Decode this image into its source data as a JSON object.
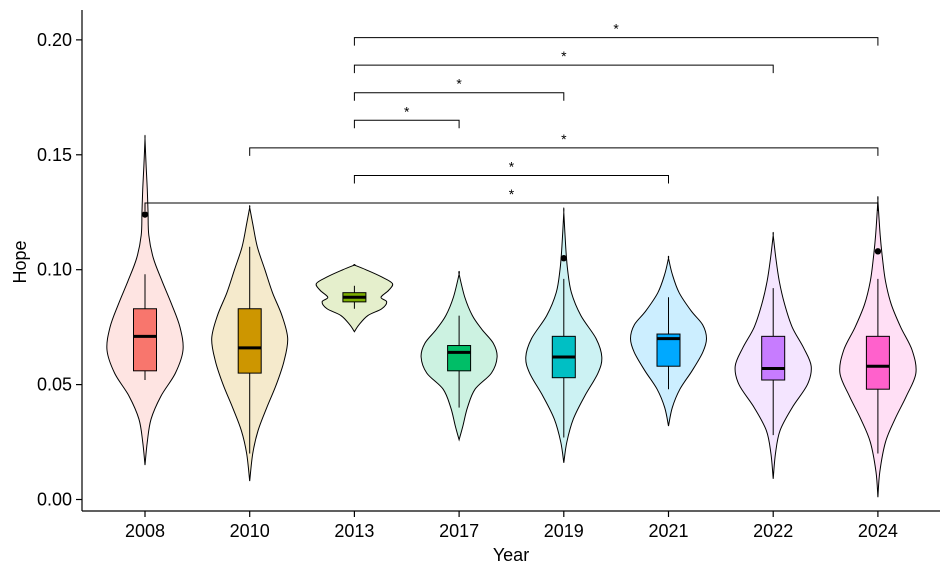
{
  "chart_data": {
    "type": "violin",
    "xlabel": "Year",
    "ylabel": "Hope",
    "ylim": [
      -0.005,
      0.213
    ],
    "yticks": [
      0.0,
      0.05,
      0.1,
      0.15,
      0.2
    ],
    "ytick_labels": [
      "0.00",
      "0.05",
      "0.10",
      "0.15",
      "0.20"
    ],
    "categories": [
      "2008",
      "2010",
      "2013",
      "2017",
      "2019",
      "2021",
      "2022",
      "2024"
    ],
    "groups": [
      {
        "category": "2008",
        "color": "#F8766D",
        "q1": 0.056,
        "median": 0.071,
        "q3": 0.083,
        "whisker_low": 0.052,
        "whisker_high": 0.098,
        "violin_min": 0.015,
        "violin_max": 0.157,
        "outliers": [
          0.124
        ],
        "density": [
          [
            0.015,
            0.0
          ],
          [
            0.025,
            0.06
          ],
          [
            0.035,
            0.16
          ],
          [
            0.045,
            0.42
          ],
          [
            0.055,
            0.8
          ],
          [
            0.065,
            1.0
          ],
          [
            0.075,
            0.92
          ],
          [
            0.085,
            0.7
          ],
          [
            0.095,
            0.45
          ],
          [
            0.105,
            0.22
          ],
          [
            0.115,
            0.1
          ],
          [
            0.125,
            0.08
          ],
          [
            0.135,
            0.06
          ],
          [
            0.145,
            0.03
          ],
          [
            0.157,
            0.0
          ]
        ]
      },
      {
        "category": "2010",
        "color": "#CD9600",
        "q1": 0.055,
        "median": 0.066,
        "q3": 0.083,
        "whisker_low": 0.02,
        "whisker_high": 0.11,
        "violin_min": 0.008,
        "violin_max": 0.127,
        "outliers": [],
        "density": [
          [
            0.008,
            0.0
          ],
          [
            0.02,
            0.08
          ],
          [
            0.03,
            0.22
          ],
          [
            0.04,
            0.45
          ],
          [
            0.05,
            0.7
          ],
          [
            0.06,
            0.9
          ],
          [
            0.07,
            1.0
          ],
          [
            0.08,
            0.85
          ],
          [
            0.09,
            0.6
          ],
          [
            0.1,
            0.4
          ],
          [
            0.11,
            0.2
          ],
          [
            0.12,
            0.08
          ],
          [
            0.127,
            0.0
          ]
        ]
      },
      {
        "category": "2013",
        "color": "#7CAE00",
        "q1": 0.086,
        "median": 0.088,
        "q3": 0.09,
        "whisker_low": 0.083,
        "whisker_high": 0.093,
        "violin_min": 0.073,
        "violin_max": 0.102,
        "outliers": [],
        "density": [
          [
            0.073,
            0.0
          ],
          [
            0.076,
            0.12
          ],
          [
            0.08,
            0.35
          ],
          [
            0.083,
            0.72
          ],
          [
            0.086,
            0.85
          ],
          [
            0.088,
            0.7
          ],
          [
            0.091,
            0.9
          ],
          [
            0.094,
            1.0
          ],
          [
            0.097,
            0.7
          ],
          [
            0.1,
            0.3
          ],
          [
            0.102,
            0.0
          ]
        ]
      },
      {
        "category": "2017",
        "color": "#00BE67",
        "q1": 0.056,
        "median": 0.064,
        "q3": 0.067,
        "whisker_low": 0.04,
        "whisker_high": 0.08,
        "violin_min": 0.026,
        "violin_max": 0.098,
        "outliers": [],
        "density": [
          [
            0.026,
            0.0
          ],
          [
            0.032,
            0.1
          ],
          [
            0.04,
            0.22
          ],
          [
            0.048,
            0.42
          ],
          [
            0.055,
            0.85
          ],
          [
            0.062,
            1.0
          ],
          [
            0.068,
            0.9
          ],
          [
            0.074,
            0.6
          ],
          [
            0.08,
            0.35
          ],
          [
            0.088,
            0.15
          ],
          [
            0.098,
            0.0
          ]
        ]
      },
      {
        "category": "2019",
        "color": "#00BFC4",
        "q1": 0.053,
        "median": 0.062,
        "q3": 0.071,
        "whisker_low": 0.027,
        "whisker_high": 0.096,
        "violin_min": 0.016,
        "violin_max": 0.125,
        "outliers": [
          0.105
        ],
        "density": [
          [
            0.016,
            0.0
          ],
          [
            0.025,
            0.08
          ],
          [
            0.035,
            0.25
          ],
          [
            0.045,
            0.55
          ],
          [
            0.055,
            0.9
          ],
          [
            0.062,
            1.0
          ],
          [
            0.07,
            0.85
          ],
          [
            0.08,
            0.45
          ],
          [
            0.09,
            0.2
          ],
          [
            0.1,
            0.1
          ],
          [
            0.11,
            0.05
          ],
          [
            0.125,
            0.0
          ]
        ]
      },
      {
        "category": "2021",
        "color": "#00A9FF",
        "q1": 0.058,
        "median": 0.07,
        "q3": 0.072,
        "whisker_low": 0.048,
        "whisker_high": 0.088,
        "violin_min": 0.032,
        "violin_max": 0.105,
        "outliers": [],
        "density": [
          [
            0.032,
            0.0
          ],
          [
            0.04,
            0.1
          ],
          [
            0.048,
            0.3
          ],
          [
            0.056,
            0.62
          ],
          [
            0.064,
            0.9
          ],
          [
            0.07,
            1.0
          ],
          [
            0.076,
            0.9
          ],
          [
            0.082,
            0.6
          ],
          [
            0.09,
            0.28
          ],
          [
            0.098,
            0.1
          ],
          [
            0.105,
            0.0
          ]
        ]
      },
      {
        "category": "2022",
        "color": "#C77CFF",
        "q1": 0.052,
        "median": 0.057,
        "q3": 0.071,
        "whisker_low": 0.028,
        "whisker_high": 0.092,
        "violin_min": 0.009,
        "violin_max": 0.115,
        "outliers": [],
        "density": [
          [
            0.009,
            0.0
          ],
          [
            0.02,
            0.06
          ],
          [
            0.03,
            0.18
          ],
          [
            0.04,
            0.5
          ],
          [
            0.05,
            0.9
          ],
          [
            0.058,
            1.0
          ],
          [
            0.066,
            0.8
          ],
          [
            0.075,
            0.5
          ],
          [
            0.085,
            0.3
          ],
          [
            0.095,
            0.16
          ],
          [
            0.105,
            0.07
          ],
          [
            0.115,
            0.0
          ]
        ]
      },
      {
        "category": "2024",
        "color": "#FF61CC",
        "q1": 0.048,
        "median": 0.058,
        "q3": 0.071,
        "whisker_low": 0.02,
        "whisker_high": 0.096,
        "violin_min": 0.001,
        "violin_max": 0.13,
        "outliers": [
          0.108
        ],
        "density": [
          [
            0.001,
            0.0
          ],
          [
            0.012,
            0.05
          ],
          [
            0.025,
            0.2
          ],
          [
            0.035,
            0.45
          ],
          [
            0.045,
            0.75
          ],
          [
            0.055,
            1.0
          ],
          [
            0.065,
            0.9
          ],
          [
            0.075,
            0.6
          ],
          [
            0.085,
            0.35
          ],
          [
            0.095,
            0.2
          ],
          [
            0.105,
            0.12
          ],
          [
            0.115,
            0.06
          ],
          [
            0.13,
            0.0
          ]
        ]
      }
    ],
    "significance": [
      {
        "from": "2008",
        "to": "2024",
        "y": 0.129,
        "label": "*"
      },
      {
        "from": "2013",
        "to": "2021",
        "y": 0.141,
        "label": "*"
      },
      {
        "from": "2010",
        "to": "2024",
        "y": 0.153,
        "label": "*"
      },
      {
        "from": "2013",
        "to": "2017",
        "y": 0.165,
        "label": "*"
      },
      {
        "from": "2013",
        "to": "2019",
        "y": 0.177,
        "label": "*"
      },
      {
        "from": "2013",
        "to": "2022",
        "y": 0.189,
        "label": "*"
      },
      {
        "from": "2013",
        "to": "2024",
        "y": 0.201,
        "label": "*"
      }
    ]
  }
}
